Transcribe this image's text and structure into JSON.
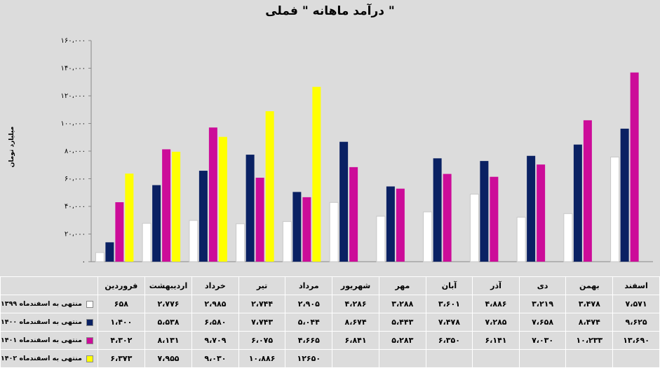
{
  "chart_data": {
    "type": "bar",
    "title": "درآمد ماهانه \" فملی \"",
    "ylabel": "میلیارد تومان",
    "ylim": [
      0,
      160000
    ],
    "yticks": [
      "۰",
      "۲۰،۰۰۰",
      "۴۰،۰۰۰",
      "۶۰،۰۰۰",
      "۸۰،۰۰۰",
      "۱۰۰،۰۰۰",
      "۱۲۰،۰۰۰",
      "۱۴۰،۰۰۰",
      "۱۶۰،۰۰۰"
    ],
    "categories": [
      "فروردین",
      "اردیبهشت",
      "خرداد",
      "تیر",
      "مرداد",
      "شهریور",
      "مهر",
      "آبان",
      "آذر",
      "دی",
      "بهمن",
      "اسفند"
    ],
    "grid": false,
    "legend": "table-bottom",
    "series": [
      {
        "name": "منتهی به اسفندماه ۱۳۹۹",
        "color": "#ffffff",
        "values": [
          6580,
          27760,
          29850,
          27440,
          29050,
          42860,
          32880,
          36010,
          48860,
          32190,
          34780,
          75710
        ],
        "labels": [
          "۶۵۸",
          "۲،۷۷۶",
          "۲،۹۸۵",
          "۲،۷۴۴",
          "۲،۹۰۵",
          "۴،۲۸۶",
          "۳،۲۸۸",
          "۳،۶۰۱",
          "۴،۸۸۶",
          "۳،۲۱۹",
          "۳،۴۷۸",
          "۷،۵۷۱"
        ]
      },
      {
        "name": "منتهی به اسفندماه ۱۴۰۰",
        "color": "#0a2163",
        "values": [
          14000,
          55380,
          65800,
          77430,
          50440,
          86740,
          54430,
          74780,
          72850,
          76580,
          84740,
          96250
        ],
        "labels": [
          "۱،۴۰۰",
          "۵،۵۳۸",
          "۶،۵۸۰",
          "۷،۷۴۳",
          "۵،۰۴۴",
          "۸،۶۷۴",
          "۵،۴۴۳",
          "۷،۴۷۸",
          "۷،۲۸۵",
          "۷،۶۵۸",
          "۸،۴۷۴",
          "۹،۶۲۵"
        ]
      },
      {
        "name": "منتهی به اسفندماه ۱۴۰۱",
        "color": "#cc0c99",
        "values": [
          43020,
          81310,
          97090,
          60750,
          46650,
          68410,
          52830,
          63500,
          61410,
          70300,
          102330,
          136900
        ],
        "labels": [
          "۴،۳۰۲",
          "۸،۱۳۱",
          "۹،۷۰۹",
          "۶،۰۷۵",
          "۴،۶۶۵",
          "۶،۸۴۱",
          "۵،۲۸۳",
          "۶،۳۵۰",
          "۶،۱۴۱",
          "۷،۰۳۰",
          "۱۰،۲۳۳",
          "۱۳،۶۹۰"
        ]
      },
      {
        "name": "منتهی به اسفندماه ۱۴۰۲",
        "color": "#ffff00",
        "values": [
          63730,
          79550,
          90300,
          108860,
          126500,
          null,
          null,
          null,
          null,
          null,
          null,
          null
        ],
        "labels": [
          "۶،۳۷۳",
          "۷،۹۵۵",
          "۹،۰۳۰",
          "۱۰،۸۸۶",
          "۱۲۶۵۰",
          "",
          "",
          "",
          "",
          "",
          "",
          ""
        ]
      }
    ]
  }
}
